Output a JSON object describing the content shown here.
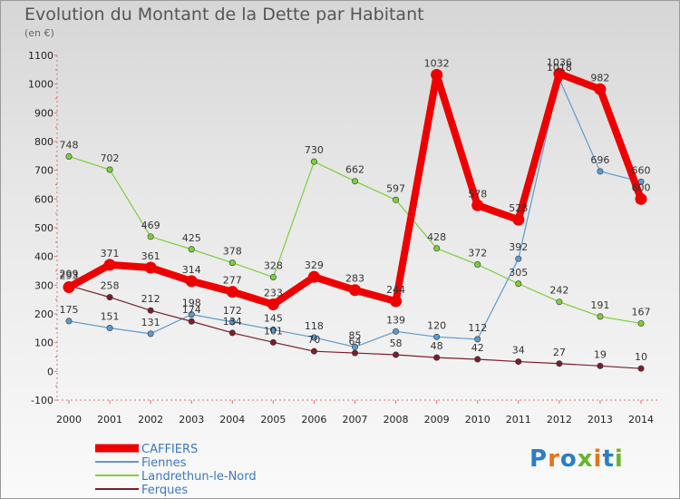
{
  "header": {
    "title": "Evolution du Montant de la Dette par Habitant",
    "subtitle": "(en €)"
  },
  "logo": {
    "text": "Proxiti",
    "colors": [
      "#2a7fc4",
      "#e8721c",
      "#2a7fc4",
      "#6ab42d",
      "#e8721c",
      "#2a7fc4",
      "#6ab42d"
    ]
  },
  "chart_data": {
    "type": "line",
    "x": [
      2000,
      2001,
      2002,
      2003,
      2004,
      2005,
      2006,
      2007,
      2008,
      2009,
      2010,
      2011,
      2012,
      2013,
      2014
    ],
    "ylim": [
      -100,
      1100
    ],
    "yticks": [
      -100,
      0,
      100,
      200,
      300,
      400,
      500,
      600,
      700,
      800,
      900,
      1000,
      1100
    ],
    "grid": false,
    "legend_position": "bottom-left",
    "series": [
      {
        "name": "CAFFIERS",
        "color": "#ee0000",
        "emphasis": true,
        "values": [
          293,
          371,
          361,
          314,
          277,
          233,
          329,
          283,
          244,
          1032,
          578,
          528,
          1036,
          982,
          600
        ]
      },
      {
        "name": "Fiennes",
        "color": "#5b9ad0",
        "values": [
          175,
          151,
          131,
          198,
          172,
          145,
          118,
          85,
          139,
          120,
          112,
          392,
          1018,
          696,
          660
        ]
      },
      {
        "name": "Landrethun-le-Nord",
        "color": "#7ccf3a",
        "values": [
          748,
          702,
          469,
          425,
          378,
          328,
          730,
          662,
          597,
          428,
          372,
          305,
          242,
          191,
          167
        ]
      },
      {
        "name": "Ferques",
        "color": "#7a1f2a",
        "values": [
          299,
          258,
          212,
          174,
          134,
          101,
          70,
          64,
          58,
          48,
          42,
          34,
          27,
          19,
          10
        ]
      }
    ]
  }
}
